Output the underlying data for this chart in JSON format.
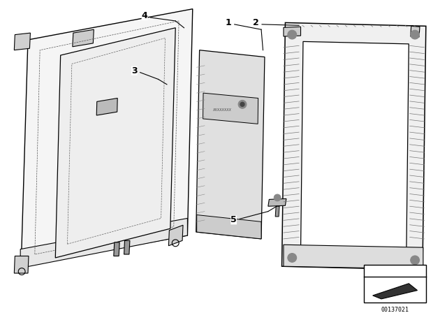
{
  "bg_color": "#ffffff",
  "line_color": "#000000",
  "label_color": "#000000",
  "part_labels": [
    "1",
    "2",
    "3",
    "4",
    "5"
  ],
  "diagram_number": "00137021",
  "figsize": [
    6.4,
    4.48
  ],
  "dpi": 100
}
